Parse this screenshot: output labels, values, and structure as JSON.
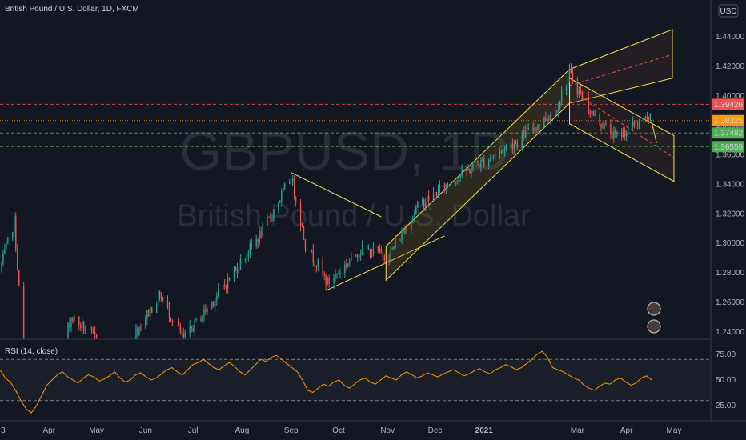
{
  "header": {
    "title": "British Pound / U.S. Dollar, 1D, FXCM",
    "currency": "USD"
  },
  "watermark": {
    "symbol": "GBPUSD, 1D",
    "name": "British Pound / U.S. Dollar"
  },
  "rsi": {
    "label": "RSI (14, close)"
  },
  "colors": {
    "background": "#131722",
    "up": "#26a69a",
    "down": "#ef5350",
    "rsi_line": "#ff9800",
    "channel": "#f5e04a",
    "grid_text": "#b2b5be"
  },
  "chart_data": [
    {
      "type": "candlestick",
      "title": "British Pound / U.S. Dollar, 1D, FXCM",
      "ylim": [
        1.235,
        1.465
      ],
      "y_ticks": [
        "1.44000",
        "1.42000",
        "1.40000",
        "1.38000",
        "1.36000",
        "1.34000",
        "1.32000",
        "1.30000",
        "1.28000",
        "1.26000",
        "1.24000"
      ],
      "x_ticks": [
        "3",
        "Apr",
        "May",
        "Jun",
        "Jul",
        "Aug",
        "Sep",
        "Oct",
        "Nov",
        "Dec",
        "2021",
        "Mar",
        "Apr",
        "May"
      ],
      "anchors": [
        [
          "2020-03-01",
          1.282
        ],
        [
          "2020-03-10",
          1.315
        ],
        [
          "2020-03-20",
          1.16
        ],
        [
          "2020-04-15",
          1.25
        ],
        [
          "2020-05-15",
          1.222
        ],
        [
          "2020-06-10",
          1.265
        ],
        [
          "2020-06-25",
          1.235
        ],
        [
          "2020-07-20",
          1.27
        ],
        [
          "2020-08-15",
          1.31
        ],
        [
          "2020-09-01",
          1.345
        ],
        [
          "2020-09-10",
          1.3
        ],
        [
          "2020-09-24",
          1.273
        ],
        [
          "2020-10-15",
          1.296
        ],
        [
          "2020-11-02",
          1.292
        ],
        [
          "2020-11-20",
          1.325
        ],
        [
          "2020-12-15",
          1.345
        ],
        [
          "2021-01-20",
          1.368
        ],
        [
          "2021-02-15",
          1.39
        ],
        [
          "2021-02-24",
          1.415
        ],
        [
          "2021-03-10",
          1.388
        ],
        [
          "2021-03-25",
          1.372
        ],
        [
          "2021-04-10",
          1.383
        ],
        [
          "2021-04-17",
          1.384
        ]
      ],
      "price_levels": [
        {
          "value": 1.39426,
          "label": "1.39426",
          "color": "#ef5350"
        },
        {
          "value": 1.38325,
          "label": "1.38325",
          "color": "#ff9800"
        },
        {
          "value": 1.37482,
          "label": "1.37482",
          "color": "#4caf50"
        },
        {
          "value": 1.36559,
          "label": "1.36559",
          "color": "#4caf50"
        }
      ]
    },
    {
      "type": "line",
      "title": "RSI (14, close)",
      "ylim": [
        15,
        85
      ],
      "y_ticks": [
        "75.00",
        "50.00",
        "25.00"
      ],
      "bands": [
        70,
        30
      ],
      "series": [
        {
          "values": [
            60,
            52,
            48,
            40,
            30,
            22,
            18,
            25,
            35,
            45,
            50,
            55,
            58,
            53,
            50,
            47,
            52,
            55,
            53,
            49,
            51,
            54,
            58,
            52,
            48,
            50,
            55,
            57,
            53,
            50,
            52,
            56,
            60,
            62,
            58,
            55,
            60,
            65,
            67,
            70,
            66,
            62,
            60,
            64,
            67,
            63,
            58,
            55,
            60,
            65,
            70,
            68,
            72,
            74,
            70,
            66,
            62,
            58,
            50,
            40,
            38,
            42,
            46,
            44,
            48,
            50,
            45,
            42,
            46,
            50,
            52,
            48,
            46,
            50,
            54,
            52,
            50,
            55,
            58,
            55,
            52,
            54,
            57,
            55,
            53,
            56,
            58,
            60,
            57,
            54,
            56,
            59,
            61,
            58,
            56,
            60,
            62,
            65,
            63,
            60,
            62,
            66,
            70,
            75,
            78,
            72,
            62,
            60,
            58,
            55,
            52,
            50,
            45,
            42,
            40,
            44,
            47,
            46,
            50,
            52,
            48,
            45,
            47,
            52,
            54,
            50
          ]
        }
      ]
    }
  ]
}
